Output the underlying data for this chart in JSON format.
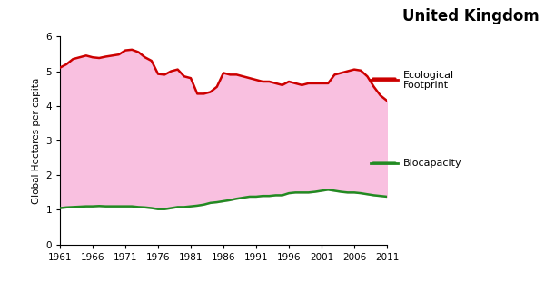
{
  "title": "United Kingdom",
  "ylabel": "Global Hectares per capita",
  "xlim": [
    1961,
    2011
  ],
  "ylim": [
    0.0,
    6.0
  ],
  "yticks": [
    0.0,
    1.0,
    2.0,
    3.0,
    4.0,
    5.0,
    6.0
  ],
  "xticks": [
    1961,
    1966,
    1971,
    1976,
    1981,
    1986,
    1991,
    1996,
    2001,
    2006,
    2011
  ],
  "footprint_color": "#cc0000",
  "biocapacity_color": "#228B22",
  "fill_color": "#f9c0e0",
  "years": [
    1961,
    1962,
    1963,
    1964,
    1965,
    1966,
    1967,
    1968,
    1969,
    1970,
    1971,
    1972,
    1973,
    1974,
    1975,
    1976,
    1977,
    1978,
    1979,
    1980,
    1981,
    1982,
    1983,
    1984,
    1985,
    1986,
    1987,
    1988,
    1989,
    1990,
    1991,
    1992,
    1993,
    1994,
    1995,
    1996,
    1997,
    1998,
    1999,
    2000,
    2001,
    2002,
    2003,
    2004,
    2005,
    2006,
    2007,
    2008,
    2009,
    2010,
    2011
  ],
  "footprint": [
    5.1,
    5.2,
    5.35,
    5.4,
    5.45,
    5.4,
    5.38,
    5.42,
    5.45,
    5.48,
    5.6,
    5.62,
    5.55,
    5.4,
    5.3,
    4.92,
    4.9,
    5.0,
    5.05,
    4.85,
    4.8,
    4.35,
    4.35,
    4.4,
    4.55,
    4.95,
    4.9,
    4.9,
    4.85,
    4.8,
    4.75,
    4.7,
    4.7,
    4.65,
    4.6,
    4.7,
    4.65,
    4.6,
    4.65,
    4.65,
    4.65,
    4.65,
    4.9,
    4.95,
    5.0,
    5.05,
    5.02,
    4.85,
    4.55,
    4.3,
    4.15
  ],
  "biocapacity": [
    1.05,
    1.07,
    1.08,
    1.09,
    1.1,
    1.1,
    1.11,
    1.1,
    1.1,
    1.1,
    1.1,
    1.1,
    1.08,
    1.07,
    1.05,
    1.02,
    1.02,
    1.05,
    1.08,
    1.08,
    1.1,
    1.12,
    1.15,
    1.2,
    1.22,
    1.25,
    1.28,
    1.32,
    1.35,
    1.38,
    1.38,
    1.4,
    1.4,
    1.42,
    1.42,
    1.48,
    1.5,
    1.5,
    1.5,
    1.52,
    1.55,
    1.58,
    1.55,
    1.52,
    1.5,
    1.5,
    1.48,
    1.45,
    1.42,
    1.4,
    1.38
  ],
  "title_fontsize": 12,
  "label_fontsize": 7.5,
  "tick_fontsize": 7.5,
  "legend_fontsize": 8
}
